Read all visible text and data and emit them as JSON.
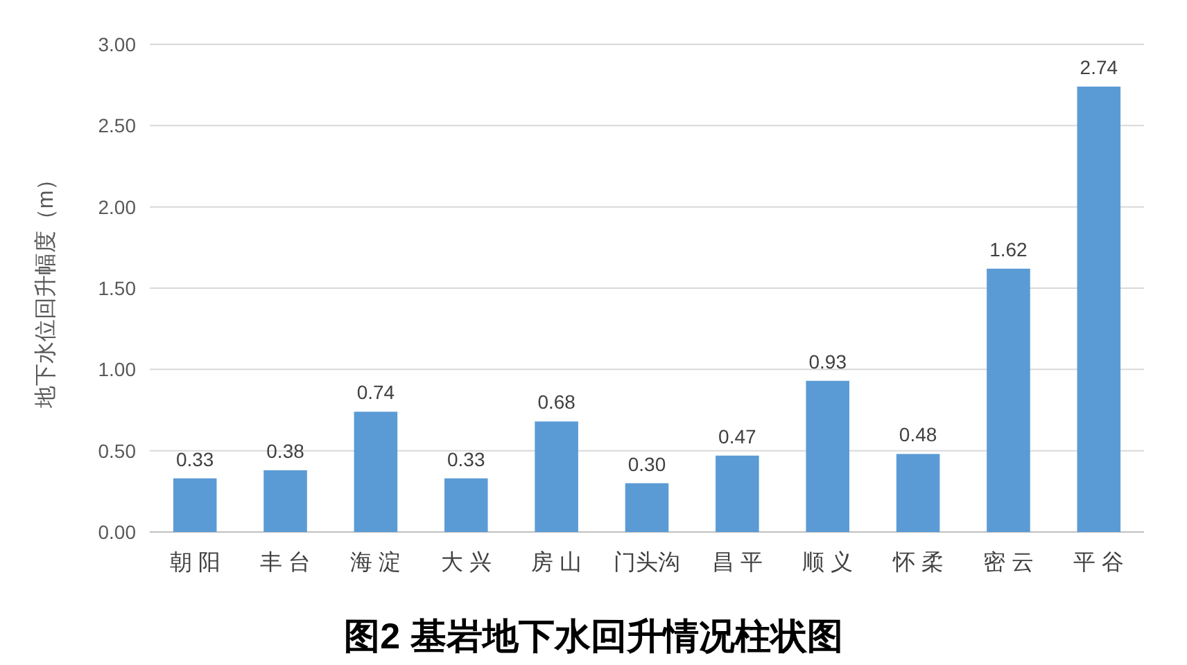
{
  "chart_data": {
    "type": "bar",
    "title": "图2  基岩地下水回升情况柱状图",
    "ylabel": "地下水位回升幅度（m）",
    "categories": [
      "朝 阳",
      "丰 台",
      "海 淀",
      "大 兴",
      "房 山",
      "门头沟",
      "昌 平",
      "顺 义",
      "怀 柔",
      "密 云",
      "平 谷"
    ],
    "values": [
      0.33,
      0.38,
      0.74,
      0.33,
      0.68,
      0.3,
      0.47,
      0.93,
      0.48,
      1.62,
      2.74
    ],
    "color": "#5b9bd5",
    "ylim": [
      0,
      3
    ],
    "yticks": [
      {
        "value": 0,
        "label": "0.00"
      },
      {
        "value": 0.5,
        "label": "0.50"
      },
      {
        "value": 1,
        "label": "1.00"
      },
      {
        "value": 1.5,
        "label": "1.50"
      },
      {
        "value": 2,
        "label": "2.00"
      },
      {
        "value": 2.5,
        "label": "2.50"
      },
      {
        "value": 3,
        "label": "3.00"
      }
    ],
    "value_labels": [
      "0.33",
      "0.38",
      "0.74",
      "0.33",
      "0.68",
      "0.30",
      "0.47",
      "0.93",
      "0.48",
      "1.62",
      "2.74"
    ],
    "grid": "y"
  }
}
